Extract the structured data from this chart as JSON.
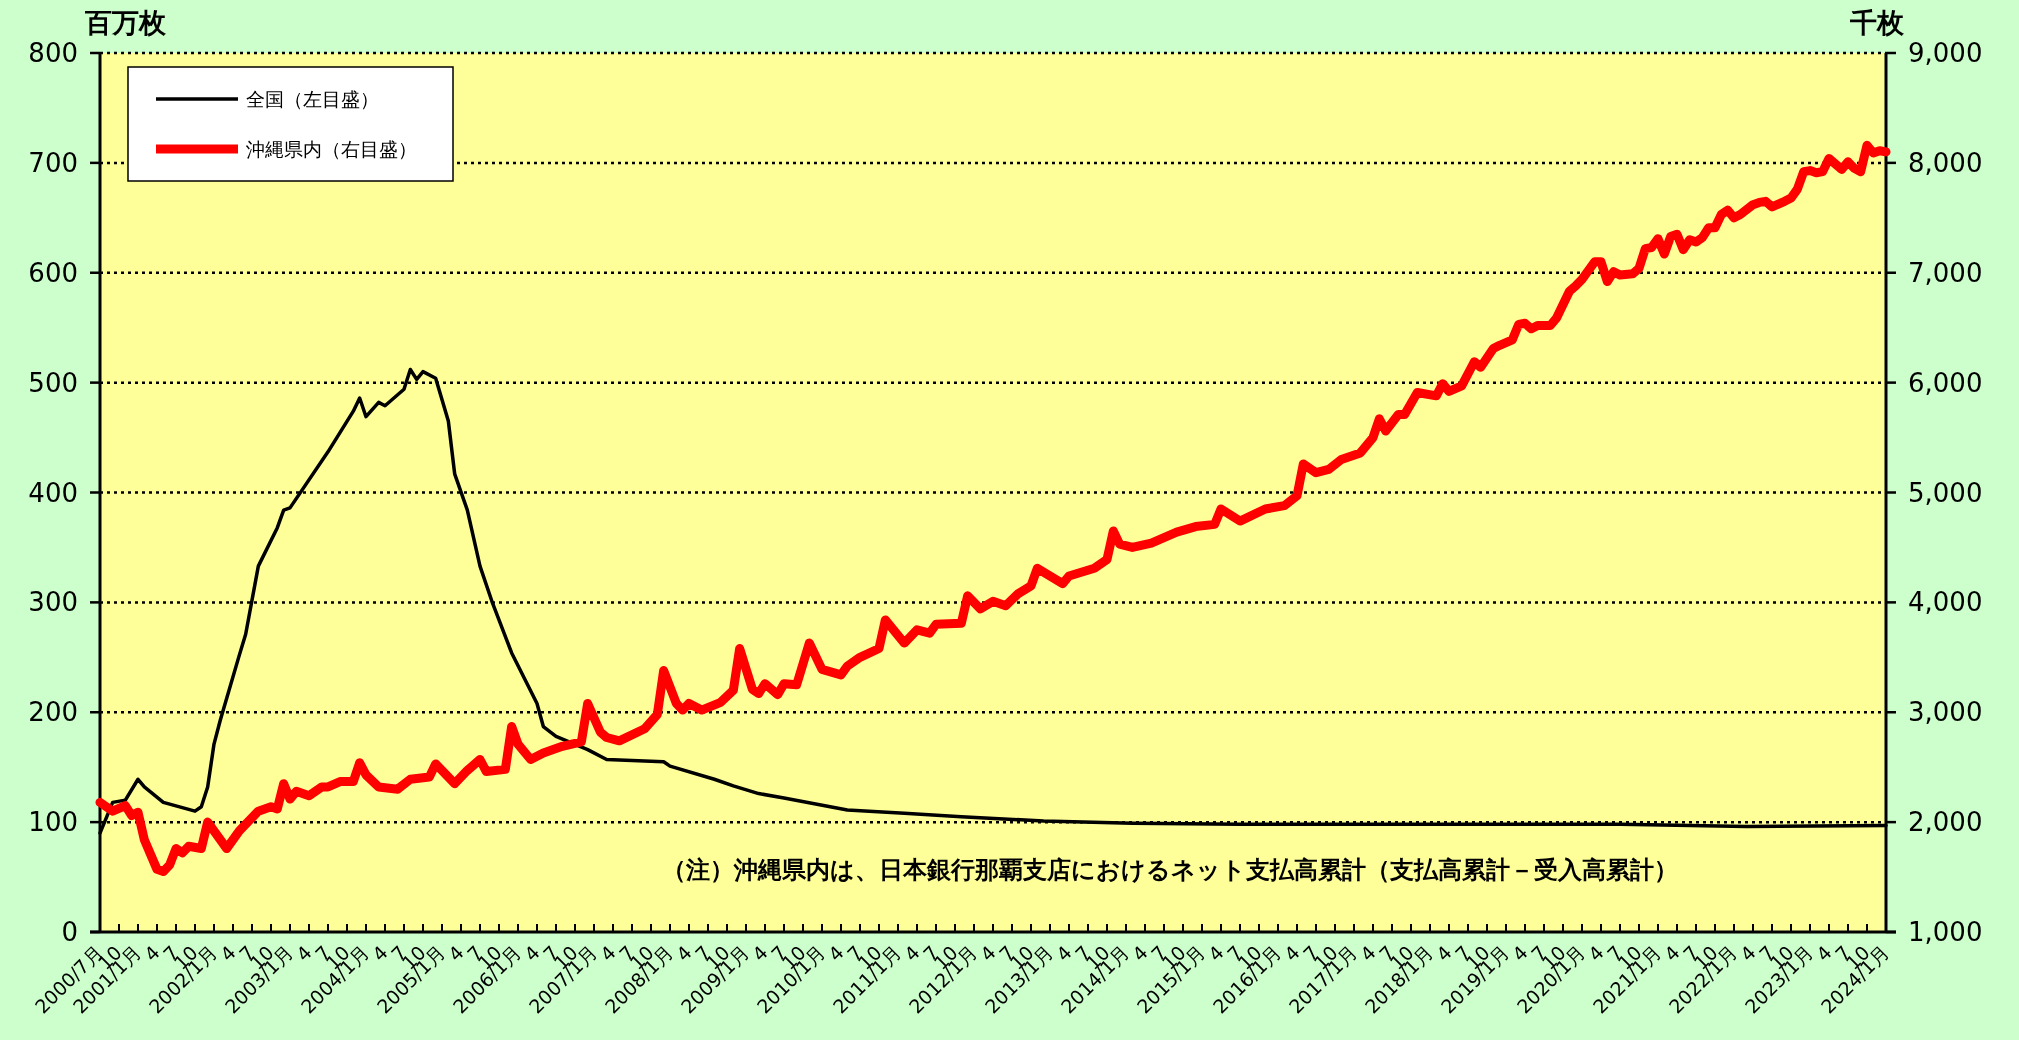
{
  "chart_data": {
    "type": "line",
    "ylabel": "百万枚",
    "y2label": "千枚",
    "xlim": [
      "2000-07",
      "2024-01"
    ],
    "xticks": [
      {
        "value": "2000-07",
        "label": "2000/7月"
      },
      {
        "value": "2000-10",
        "label": "10"
      },
      {
        "value": "2001-01",
        "label": "2001/1月"
      },
      {
        "value": "2001-04",
        "label": "4"
      },
      {
        "value": "2001-07",
        "label": "7"
      },
      {
        "value": "2001-10",
        "label": "10"
      },
      {
        "value": "2002-01",
        "label": "2002/1月"
      },
      {
        "value": "2002-04",
        "label": "4"
      },
      {
        "value": "2002-07",
        "label": "7"
      },
      {
        "value": "2002-10",
        "label": "10"
      },
      {
        "value": "2003-01",
        "label": "2003/1月"
      },
      {
        "value": "2003-04",
        "label": "4"
      },
      {
        "value": "2003-07",
        "label": "7"
      },
      {
        "value": "2003-10",
        "label": "10"
      },
      {
        "value": "2004-01",
        "label": "2004/1月"
      },
      {
        "value": "2004-04",
        "label": "4"
      },
      {
        "value": "2004-07",
        "label": "7"
      },
      {
        "value": "2004-10",
        "label": "10"
      },
      {
        "value": "2005-01",
        "label": "2005/1月"
      },
      {
        "value": "2005-04",
        "label": "4"
      },
      {
        "value": "2005-07",
        "label": "7"
      },
      {
        "value": "2005-10",
        "label": "10"
      },
      {
        "value": "2006-01",
        "label": "2006/1月"
      },
      {
        "value": "2006-04",
        "label": "4"
      },
      {
        "value": "2006-07",
        "label": "7"
      },
      {
        "value": "2006-10",
        "label": "10"
      },
      {
        "value": "2007-01",
        "label": "2007/1月"
      },
      {
        "value": "2007-04",
        "label": "4"
      },
      {
        "value": "2007-07",
        "label": "7"
      },
      {
        "value": "2007-10",
        "label": "10"
      },
      {
        "value": "2008-01",
        "label": "2008/1月"
      },
      {
        "value": "2008-04",
        "label": "4"
      },
      {
        "value": "2008-07",
        "label": "7"
      },
      {
        "value": "2008-10",
        "label": "10"
      },
      {
        "value": "2009-01",
        "label": "2009/1月"
      },
      {
        "value": "2009-04",
        "label": "4"
      },
      {
        "value": "2009-07",
        "label": "7"
      },
      {
        "value": "2009-10",
        "label": "10"
      },
      {
        "value": "2010-01",
        "label": "2010/1月"
      },
      {
        "value": "2010-04",
        "label": "4"
      },
      {
        "value": "2010-07",
        "label": "7"
      },
      {
        "value": "2010-10",
        "label": "10"
      },
      {
        "value": "2011-01",
        "label": "2011/1月"
      },
      {
        "value": "2011-04",
        "label": "4"
      },
      {
        "value": "2011-07",
        "label": "7"
      },
      {
        "value": "2011-10",
        "label": "10"
      },
      {
        "value": "2012-01",
        "label": "2012/1月"
      },
      {
        "value": "2012-04",
        "label": "4"
      },
      {
        "value": "2012-07",
        "label": "7"
      },
      {
        "value": "2012-10",
        "label": "10"
      },
      {
        "value": "2013-01",
        "label": "2013/1月"
      },
      {
        "value": "2013-04",
        "label": "4"
      },
      {
        "value": "2013-07",
        "label": "7"
      },
      {
        "value": "2013-10",
        "label": "10"
      },
      {
        "value": "2014-01",
        "label": "2014/1月"
      },
      {
        "value": "2014-04",
        "label": "4"
      },
      {
        "value": "2014-07",
        "label": "7"
      },
      {
        "value": "2014-10",
        "label": "10"
      },
      {
        "value": "2015-01",
        "label": "2015/1月"
      },
      {
        "value": "2015-04",
        "label": "4"
      },
      {
        "value": "2015-07",
        "label": "7"
      },
      {
        "value": "2015-10",
        "label": "10"
      },
      {
        "value": "2016-01",
        "label": "2016/1月"
      },
      {
        "value": "2016-04",
        "label": "4"
      },
      {
        "value": "2016-07",
        "label": "7"
      },
      {
        "value": "2016-10",
        "label": "10"
      },
      {
        "value": "2017-01",
        "label": "2017/1月"
      },
      {
        "value": "2017-04",
        "label": "4"
      },
      {
        "value": "2017-07",
        "label": "7"
      },
      {
        "value": "2017-10",
        "label": "10"
      },
      {
        "value": "2018-01",
        "label": "2018/1月"
      },
      {
        "value": "2018-04",
        "label": "4"
      },
      {
        "value": "2018-07",
        "label": "7"
      },
      {
        "value": "2018-10",
        "label": "10"
      },
      {
        "value": "2019-01",
        "label": "2019/1月"
      },
      {
        "value": "2019-04",
        "label": "4"
      },
      {
        "value": "2019-07",
        "label": "7"
      },
      {
        "value": "2019-10",
        "label": "10"
      },
      {
        "value": "2020-01",
        "label": "2020/1月"
      },
      {
        "value": "2020-04",
        "label": "4"
      },
      {
        "value": "2020-07",
        "label": "7"
      },
      {
        "value": "2020-10",
        "label": "10"
      },
      {
        "value": "2021-01",
        "label": "2021/1月"
      },
      {
        "value": "2021-04",
        "label": "4"
      },
      {
        "value": "2021-07",
        "label": "7"
      },
      {
        "value": "2021-10",
        "label": "10"
      },
      {
        "value": "2022-01",
        "label": "2022/1月"
      },
      {
        "value": "2022-04",
        "label": "4"
      },
      {
        "value": "2022-07",
        "label": "7"
      },
      {
        "value": "2022-10",
        "label": "10"
      },
      {
        "value": "2023-01",
        "label": "2023/1月"
      },
      {
        "value": "2023-04",
        "label": "4"
      },
      {
        "value": "2023-07",
        "label": "7"
      },
      {
        "value": "2023-10",
        "label": "10"
      },
      {
        "value": "2024-01",
        "label": "2024/1月"
      }
    ],
    "ylim": [
      0,
      800
    ],
    "yticks": [
      0,
      100,
      200,
      300,
      400,
      500,
      600,
      700,
      800
    ],
    "y2lim": [
      1000,
      9000
    ],
    "y2ticks": [
      {
        "value": 1000,
        "label": "1,000"
      },
      {
        "value": 2000,
        "label": "2,000"
      },
      {
        "value": 3000,
        "label": "3,000"
      },
      {
        "value": 4000,
        "label": "4,000"
      },
      {
        "value": 5000,
        "label": "5,000"
      },
      {
        "value": 6000,
        "label": "6,000"
      },
      {
        "value": 7000,
        "label": "7,000"
      },
      {
        "value": 8000,
        "label": "8,000"
      },
      {
        "value": 9000,
        "label": "9,000"
      }
    ],
    "grid": "y",
    "legend": "top left",
    "series": [
      {
        "name": "全国（左目盛）",
        "color": "#000000",
        "x": [
          "2000-07",
          "2000-09",
          "2000-11",
          "2001-01",
          "2001-02",
          "2001-05",
          "2001-10",
          "2001-11",
          "2001-12",
          "2002-01",
          "2002-02",
          "2002-05",
          "2002-06",
          "2002-08",
          "2002-11",
          "2002-12",
          "2003-01",
          "2003-07",
          "2003-11",
          "2003-12",
          "2004-01",
          "2004-03",
          "2004-04",
          "2004-07",
          "2004-08",
          "2004-09",
          "2004-10",
          "2004-12",
          "2005-02",
          "2005-03",
          "2005-05",
          "2005-07",
          "2005-09",
          "2005-12",
          "2006-04",
          "2006-05",
          "2006-07",
          "2006-12",
          "2007-03",
          "2007-07",
          "2007-12",
          "2008-01",
          "2008-08",
          "2008-11",
          "2009-03",
          "2009-07",
          "2010-05",
          "2011-02",
          "2011-11",
          "2012-12",
          "2014-02",
          "2015-07",
          "2017-03",
          "2018-11",
          "2020-07",
          "2022-03",
          "2024-01"
        ],
        "values": [
          90,
          118,
          120,
          139,
          132,
          118,
          110,
          114,
          132,
          171,
          193,
          252,
          271,
          333,
          368,
          384,
          386,
          437,
          474,
          486,
          469,
          482,
          479,
          494,
          512,
          503,
          510,
          504,
          465,
          417,
          384,
          333,
          299,
          254,
          208,
          187,
          178,
          166,
          157,
          156,
          155,
          151,
          139,
          133,
          126,
          122,
          111,
          108,
          105,
          101,
          99,
          98,
          98,
          98,
          98,
          96,
          97
        ]
      },
      {
        "name": "沖縄県内（右目盛）",
        "color": "#ff0000",
        "axis": "y2",
        "x": [
          "2000-07",
          "2000-09",
          "2000-11",
          "2000-12",
          "2001-01",
          "2001-02",
          "2001-04",
          "2001-05",
          "2001-06",
          "2001-07",
          "2001-08",
          "2001-09",
          "2001-11",
          "2001-12",
          "2002-03",
          "2002-05",
          "2002-08",
          "2002-10",
          "2002-11",
          "2002-12",
          "2003-01",
          "2003-02",
          "2003-04",
          "2003-06",
          "2003-07",
          "2003-09",
          "2003-11",
          "2003-12",
          "2004-01",
          "2004-03",
          "2004-06",
          "2004-08",
          "2004-11",
          "2004-12",
          "2005-03",
          "2005-05",
          "2005-07",
          "2005-08",
          "2005-11",
          "2005-12",
          "2006-01",
          "2006-03",
          "2006-05",
          "2006-08",
          "2006-11",
          "2006-12",
          "2007-02",
          "2007-03",
          "2007-05",
          "2007-09",
          "2007-11",
          "2007-12",
          "2008-02",
          "2008-03",
          "2008-04",
          "2008-06",
          "2008-09",
          "2008-11",
          "2008-12",
          "2009-02",
          "2009-03",
          "2009-04",
          "2009-06",
          "2009-07",
          "2009-09",
          "2009-11",
          "2010-01",
          "2010-04",
          "2010-05",
          "2010-07",
          "2010-10",
          "2010-11",
          "2011-02",
          "2011-04",
          "2011-06",
          "2011-07",
          "2011-11",
          "2011-12",
          "2012-02",
          "2012-04",
          "2012-06",
          "2012-08",
          "2012-10",
          "2012-11",
          "2013-03",
          "2013-04",
          "2013-08",
          "2013-10",
          "2013-11",
          "2013-12",
          "2014-02",
          "2014-05",
          "2014-07",
          "2014-09",
          "2014-12",
          "2015-03",
          "2015-04",
          "2015-07",
          "2015-11",
          "2016-02",
          "2016-04",
          "2016-05",
          "2016-07",
          "2016-09",
          "2016-11",
          "2017-02",
          "2017-04",
          "2017-05",
          "2017-06",
          "2017-08",
          "2017-09",
          "2017-11",
          "2018-02",
          "2018-03",
          "2018-04",
          "2018-06",
          "2018-08",
          "2018-09",
          "2018-11",
          "2018-12",
          "2019-02",
          "2019-03",
          "2019-04",
          "2019-05",
          "2019-06",
          "2019-08",
          "2019-09",
          "2019-11",
          "2019-12",
          "2020-01",
          "2020-03",
          "2020-04",
          "2020-05",
          "2020-06",
          "2020-07",
          "2020-09",
          "2020-10",
          "2020-11",
          "2020-12",
          "2021-01",
          "2021-02",
          "2021-03",
          "2021-04",
          "2021-05",
          "2021-06",
          "2021-07",
          "2021-08",
          "2021-09",
          "2021-10",
          "2021-11",
          "2021-12",
          "2022-01",
          "2022-02",
          "2022-04",
          "2022-05",
          "2022-06",
          "2022-07",
          "2022-09",
          "2022-10",
          "2022-11",
          "2022-12",
          "2023-01",
          "2023-02",
          "2023-03",
          "2023-04",
          "2023-06",
          "2023-07",
          "2023-08",
          "2023-09",
          "2023-10",
          "2023-11",
          "2023-12",
          "2024-01"
        ],
        "values": [
          2180,
          2100,
          2150,
          2060,
          2090,
          1840,
          1570,
          1550,
          1610,
          1760,
          1720,
          1780,
          1760,
          2000,
          1760,
          1920,
          2100,
          2140,
          2120,
          2350,
          2210,
          2280,
          2240,
          2320,
          2320,
          2370,
          2370,
          2540,
          2430,
          2320,
          2300,
          2390,
          2410,
          2530,
          2350,
          2470,
          2570,
          2460,
          2480,
          2870,
          2710,
          2570,
          2630,
          2690,
          2730,
          3080,
          2820,
          2770,
          2740,
          2850,
          2980,
          3380,
          3080,
          3020,
          3080,
          3020,
          3090,
          3200,
          3580,
          3210,
          3170,
          3260,
          3160,
          3260,
          3250,
          3630,
          3390,
          3340,
          3420,
          3500,
          3580,
          3840,
          3630,
          3750,
          3720,
          3800,
          3810,
          4060,
          3940,
          4010,
          3970,
          4080,
          4150,
          4310,
          4170,
          4240,
          4310,
          4390,
          4650,
          4530,
          4500,
          4540,
          4590,
          4640,
          4690,
          4710,
          4850,
          4740,
          4850,
          4880,
          4970,
          5260,
          5180,
          5210,
          5300,
          5360,
          5500,
          5670,
          5560,
          5710,
          5710,
          5910,
          5880,
          5990,
          5920,
          5970,
          6190,
          6140,
          6310,
          6340,
          6390,
          6530,
          6540,
          6490,
          6520,
          6520,
          6590,
          6830,
          6880,
          6940,
          7100,
          7100,
          6920,
          7010,
          6980,
          6990,
          7040,
          7220,
          7230,
          7310,
          7170,
          7330,
          7350,
          7210,
          7300,
          7280,
          7320,
          7410,
          7410,
          7530,
          7570,
          7500,
          7530,
          7620,
          7640,
          7650,
          7600,
          7650,
          7680,
          7760,
          7920,
          7930,
          7910,
          7920,
          8040,
          7940,
          8010,
          7950,
          7920,
          8160,
          8090,
          8110,
          8100
        ]
      }
    ],
    "annotations": [
      "（注）沖縄県内は、日本銀行那覇支店におけるネット支払高累計（支払高累計－受入高累計）"
    ]
  }
}
